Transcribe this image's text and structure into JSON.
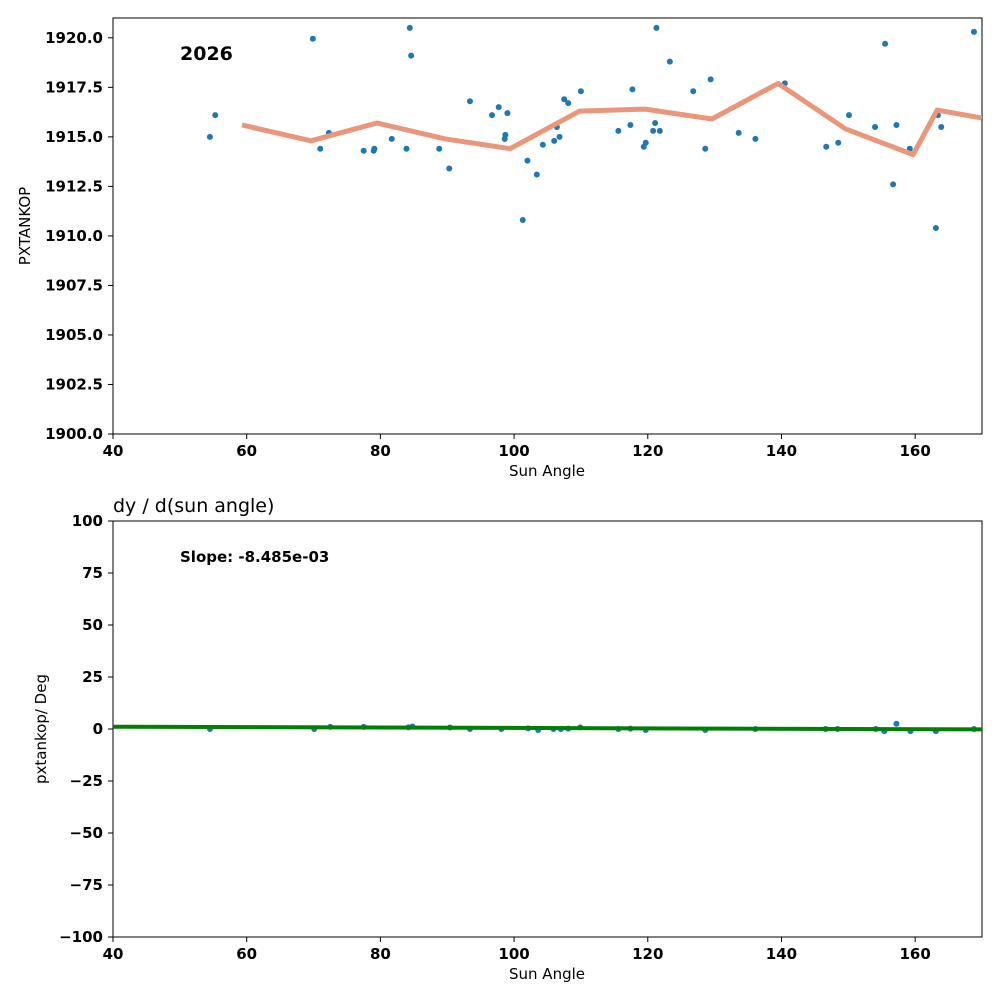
{
  "chart_data": [
    {
      "type": "scatter",
      "title": "",
      "annotation": "2026",
      "xlabel": "Sun Angle",
      "ylabel": "PXTANKOP",
      "xlim": [
        40,
        170
      ],
      "ylim": [
        1900,
        1921
      ],
      "x_ticks": [
        40,
        60,
        80,
        100,
        120,
        140,
        160
      ],
      "x_tick_labels": [
        "40",
        "60",
        "80",
        "100",
        "120",
        "140",
        "160"
      ],
      "y_ticks": [
        1900,
        1902.5,
        1905,
        1907.5,
        1910,
        1912.5,
        1915,
        1917.5,
        1920
      ],
      "y_tick_labels": [
        "1900.0",
        "1902.5",
        "1905.0",
        "1907.5",
        "1910.0",
        "1912.5",
        "1915.0",
        "1917.5",
        "1920.0"
      ],
      "grid": false,
      "colors": {
        "points": "#1f77b4",
        "trend": "#e9967a"
      },
      "series": [
        {
          "name": "data",
          "points": [
            [
              54.5,
              1915.0
            ],
            [
              55.3,
              1916.1
            ],
            [
              69.9,
              1919.95
            ],
            [
              71.0,
              1914.4
            ],
            [
              72.3,
              1915.2
            ],
            [
              77.5,
              1914.3
            ],
            [
              79.0,
              1914.3
            ],
            [
              79.1,
              1914.4
            ],
            [
              81.7,
              1914.9
            ],
            [
              83.9,
              1914.4
            ],
            [
              84.4,
              1920.5
            ],
            [
              84.6,
              1919.1
            ],
            [
              88.8,
              1914.4
            ],
            [
              90.3,
              1913.4
            ],
            [
              93.4,
              1916.8
            ],
            [
              96.7,
              1916.1
            ],
            [
              97.7,
              1916.5
            ],
            [
              98.6,
              1914.9
            ],
            [
              98.7,
              1915.1
            ],
            [
              99.0,
              1916.2
            ],
            [
              101.3,
              1910.8
            ],
            [
              102.0,
              1913.8
            ],
            [
              103.4,
              1913.1
            ],
            [
              104.3,
              1914.6
            ],
            [
              106.0,
              1914.8
            ],
            [
              106.4,
              1915.5
            ],
            [
              106.8,
              1915.0
            ],
            [
              107.5,
              1916.9
            ],
            [
              108.1,
              1916.7
            ],
            [
              110.0,
              1917.3
            ],
            [
              115.6,
              1915.3
            ],
            [
              117.4,
              1915.6
            ],
            [
              117.7,
              1917.4
            ],
            [
              119.4,
              1914.5
            ],
            [
              119.7,
              1914.7
            ],
            [
              120.8,
              1915.3
            ],
            [
              121.1,
              1915.7
            ],
            [
              121.3,
              1920.5
            ],
            [
              121.8,
              1915.3
            ],
            [
              123.3,
              1918.8
            ],
            [
              126.8,
              1917.3
            ],
            [
              128.6,
              1914.4
            ],
            [
              129.4,
              1917.9
            ],
            [
              133.6,
              1915.2
            ],
            [
              136.1,
              1914.9
            ],
            [
              140.5,
              1917.7
            ],
            [
              146.7,
              1914.5
            ],
            [
              148.5,
              1914.7
            ],
            [
              150.1,
              1916.1
            ],
            [
              154.0,
              1915.5
            ],
            [
              155.5,
              1919.7
            ],
            [
              156.7,
              1912.6
            ],
            [
              157.2,
              1915.6
            ],
            [
              159.2,
              1914.4
            ],
            [
              163.1,
              1910.4
            ],
            [
              163.4,
              1916.1
            ],
            [
              163.9,
              1915.5
            ],
            [
              168.8,
              1920.3
            ]
          ]
        },
        {
          "name": "trend",
          "points": [
            [
              59.3,
              1915.6
            ],
            [
              69.6,
              1914.8
            ],
            [
              79.5,
              1915.7
            ],
            [
              89.6,
              1914.9
            ],
            [
              99.4,
              1914.4
            ],
            [
              109.8,
              1916.3
            ],
            [
              119.6,
              1916.4
            ],
            [
              129.6,
              1915.9
            ],
            [
              139.5,
              1917.7
            ],
            [
              149.6,
              1915.4
            ],
            [
              159.7,
              1914.1
            ],
            [
              163.3,
              1916.35
            ],
            [
              170.0,
              1915.95
            ]
          ]
        }
      ]
    },
    {
      "type": "scatter",
      "title": "dy / d(sun angle)",
      "annotation": "Slope: -8.485e-03",
      "xlabel": "Sun Angle",
      "ylabel": "pxtankop/ Deg",
      "xlim": [
        40,
        170
      ],
      "ylim": [
        -100,
        100
      ],
      "x_ticks": [
        40,
        60,
        80,
        100,
        120,
        140,
        160
      ],
      "x_tick_labels": [
        "40",
        "60",
        "80",
        "100",
        "120",
        "140",
        "160"
      ],
      "y_ticks": [
        100,
        75,
        50,
        25,
        0,
        -25,
        -50,
        -75,
        -100
      ],
      "y_tick_labels": [
        "100",
        "75",
        "50",
        "25",
        "0",
        "−25",
        "−50",
        "−75",
        "−100"
      ],
      "grid": false,
      "colors": {
        "points": "#1f77b4",
        "fit": "#008000"
      },
      "series": [
        {
          "name": "derivative",
          "points": [
            [
              54.5,
              0.0
            ],
            [
              70.1,
              0.0
            ],
            [
              72.5,
              1.0
            ],
            [
              77.5,
              1.0
            ],
            [
              84.2,
              0.8
            ],
            [
              84.8,
              1.2
            ],
            [
              90.4,
              0.7
            ],
            [
              93.4,
              0.0
            ],
            [
              98.1,
              0.0
            ],
            [
              102.1,
              0.3
            ],
            [
              103.6,
              -0.5
            ],
            [
              105.9,
              0.0
            ],
            [
              107.0,
              0.0
            ],
            [
              108.1,
              0.2
            ],
            [
              109.9,
              0.8
            ],
            [
              115.6,
              0.0
            ],
            [
              117.4,
              0.2
            ],
            [
              119.7,
              -0.5
            ],
            [
              128.6,
              -0.5
            ],
            [
              136.1,
              0.0
            ],
            [
              146.6,
              0.0
            ],
            [
              148.4,
              0.0
            ],
            [
              154.1,
              0.0
            ],
            [
              155.4,
              -1.0
            ],
            [
              157.2,
              2.5
            ],
            [
              159.3,
              -1.0
            ],
            [
              163.1,
              -1.0
            ],
            [
              168.8,
              0.0
            ]
          ]
        },
        {
          "name": "fit",
          "points": [
            [
              40,
              1.1
            ],
            [
              170,
              -0.2
            ]
          ]
        }
      ]
    }
  ]
}
